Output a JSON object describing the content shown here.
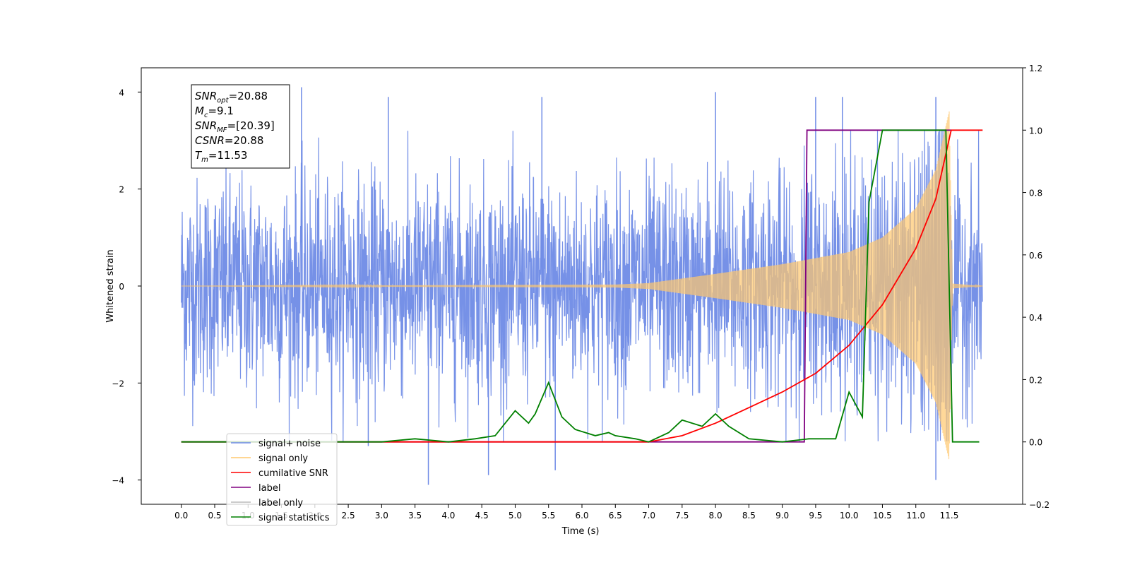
{
  "chart_data": {
    "type": "line",
    "xlabel": "Time (s)",
    "ylabel": "Whitened strain",
    "xlim": [
      -0.6,
      12.6
    ],
    "ylim_left": [
      -4.5,
      4.5
    ],
    "ylim_right": [
      -0.2,
      1.2
    ],
    "x_ticks": [
      "0.0",
      "0.5",
      "1.0",
      "1.5",
      "2.0",
      "2.5",
      "3.0",
      "3.5",
      "4.0",
      "4.5",
      "5.0",
      "5.5",
      "6.0",
      "6.5",
      "7.0",
      "7.5",
      "8.0",
      "8.5",
      "9.0",
      "9.5",
      "10.0",
      "10.5",
      "11.0",
      "11.5"
    ],
    "y_left_ticks": [
      "−4",
      "−2",
      "0",
      "2",
      "4"
    ],
    "y_right_ticks": [
      "−0.2",
      "0.0",
      "0.2",
      "0.4",
      "0.6",
      "0.8",
      "1.0",
      "1.2"
    ],
    "annotation": {
      "lines": [
        {
          "sym": "SNR",
          "sub": "opt",
          "val": "=20.88"
        },
        {
          "sym": "M",
          "sub": "c",
          "val": "=9.1"
        },
        {
          "sym": "SNR",
          "sub": "MF",
          "val": "=[20.39]"
        },
        {
          "sym": "CSNR",
          "sub": "",
          "val": "=20.88"
        },
        {
          "sym": "T",
          "sub": "m",
          "val": "=11.53"
        }
      ]
    },
    "legend": {
      "placement": "lower-left",
      "entries": [
        {
          "label": "signal+ noise",
          "color": "#6f8be6"
        },
        {
          "label": "signal only",
          "color": "#ffc86e"
        },
        {
          "label": "cumilative SNR",
          "color": "#ff0000"
        },
        {
          "label": "label",
          "color": "#800080"
        },
        {
          "label": "label only",
          "color": "#bbbbbb"
        },
        {
          "label": "signal statistics",
          "color": "#008000"
        }
      ]
    },
    "series": [
      {
        "name": "signal+ noise",
        "axis": "left",
        "color": "#6f8be6",
        "x_range": [
          0.0,
          12.0
        ],
        "noise_sigma": 1.0,
        "peaks": [
          {
            "x": 1.8,
            "y": 4.1
          },
          {
            "x": 2.8,
            "y": -3.3
          },
          {
            "x": 3.1,
            "y": 3.9
          },
          {
            "x": 3.7,
            "y": -4.1
          },
          {
            "x": 4.6,
            "y": -3.9
          },
          {
            "x": 5.4,
            "y": 3.9
          },
          {
            "x": 5.6,
            "y": -3.8
          },
          {
            "x": 8.0,
            "y": 4.0
          },
          {
            "x": 9.5,
            "y": 3.9
          },
          {
            "x": 9.9,
            "y": 3.9
          },
          {
            "x": 11.3,
            "y": -4.0
          },
          {
            "x": 11.3,
            "y": 3.9
          }
        ]
      },
      {
        "name": "signal only",
        "axis": "left",
        "color": "#ffc86e",
        "envelope": [
          [
            0.0,
            0.0
          ],
          [
            6.5,
            0.03
          ],
          [
            7.0,
            0.06
          ],
          [
            8.0,
            0.25
          ],
          [
            9.0,
            0.45
          ],
          [
            10.0,
            0.7
          ],
          [
            10.5,
            1.0
          ],
          [
            11.0,
            1.6
          ],
          [
            11.3,
            2.4
          ],
          [
            11.5,
            3.6
          ],
          [
            11.55,
            0.05
          ],
          [
            12.0,
            0.0
          ]
        ]
      },
      {
        "name": "cumilative SNR",
        "axis": "right",
        "color": "#ff0000",
        "points": [
          [
            0.0,
            0.0
          ],
          [
            7.0,
            0.0
          ],
          [
            7.5,
            0.02
          ],
          [
            8.0,
            0.06
          ],
          [
            8.5,
            0.11
          ],
          [
            9.0,
            0.16
          ],
          [
            9.5,
            0.22
          ],
          [
            10.0,
            0.31
          ],
          [
            10.5,
            0.44
          ],
          [
            11.0,
            0.62
          ],
          [
            11.3,
            0.78
          ],
          [
            11.53,
            1.0
          ],
          [
            12.0,
            1.0
          ]
        ]
      },
      {
        "name": "label",
        "axis": "right",
        "color": "#800080",
        "points": [
          [
            0.0,
            0.0
          ],
          [
            9.33,
            0.0
          ],
          [
            9.37,
            1.0
          ],
          [
            11.53,
            1.0
          ]
        ]
      },
      {
        "name": "signal statistics",
        "axis": "right",
        "color": "#008000",
        "points": [
          [
            0.0,
            0.0
          ],
          [
            3.0,
            0.0
          ],
          [
            3.5,
            0.01
          ],
          [
            4.0,
            0.0
          ],
          [
            4.4,
            0.01
          ],
          [
            4.7,
            0.02
          ],
          [
            5.0,
            0.1
          ],
          [
            5.2,
            0.06
          ],
          [
            5.3,
            0.09
          ],
          [
            5.5,
            0.19
          ],
          [
            5.7,
            0.08
          ],
          [
            5.9,
            0.04
          ],
          [
            6.2,
            0.02
          ],
          [
            6.4,
            0.03
          ],
          [
            6.5,
            0.02
          ],
          [
            6.8,
            0.01
          ],
          [
            7.0,
            0.0
          ],
          [
            7.3,
            0.03
          ],
          [
            7.5,
            0.07
          ],
          [
            7.8,
            0.05
          ],
          [
            8.0,
            0.09
          ],
          [
            8.2,
            0.05
          ],
          [
            8.5,
            0.01
          ],
          [
            9.0,
            0.0
          ],
          [
            9.4,
            0.01
          ],
          [
            9.8,
            0.01
          ],
          [
            10.0,
            0.16
          ],
          [
            10.2,
            0.08
          ],
          [
            10.3,
            0.77
          ],
          [
            10.5,
            1.0
          ],
          [
            11.45,
            1.0
          ],
          [
            11.55,
            0.0
          ],
          [
            11.95,
            0.0
          ]
        ]
      }
    ]
  }
}
